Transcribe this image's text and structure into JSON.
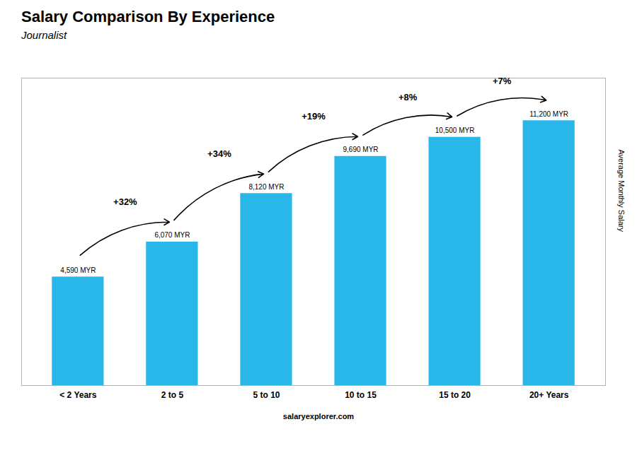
{
  "chart_data": {
    "type": "bar",
    "title": "Salary Comparison By Experience",
    "subtitle": "Journalist",
    "ylabel": "Average Monthly Salary",
    "categories": [
      "< 2 Years",
      "2 to 5",
      "5 to 10",
      "10 to 15",
      "15 to 20",
      "20+ Years"
    ],
    "values": [
      4590,
      6070,
      8120,
      9690,
      10500,
      11200
    ],
    "value_labels": [
      "4,590 MYR",
      "6,070 MYR",
      "8,120 MYR",
      "9,690 MYR",
      "10,500 MYR",
      "11,200 MYR"
    ],
    "data_labels": true,
    "color": "#29b6e8",
    "ylim": [
      0,
      13000
    ],
    "yticks": [],
    "tick_labels": "x",
    "grid": false,
    "annotations": [
      {
        "text": "+32%",
        "from": "< 2 Years",
        "to": "2 to 5"
      },
      {
        "text": "+34%",
        "from": "2 to 5",
        "to": "5 to 10"
      },
      {
        "text": "+19%",
        "from": "5 to 10",
        "to": "10 to 15"
      },
      {
        "text": "+8%",
        "from": "10 to 15",
        "to": "15 to 20"
      },
      {
        "text": "+7%",
        "from": "15 to 20",
        "to": "20+ Years"
      }
    ],
    "caption": "salaryexplorer.com"
  }
}
